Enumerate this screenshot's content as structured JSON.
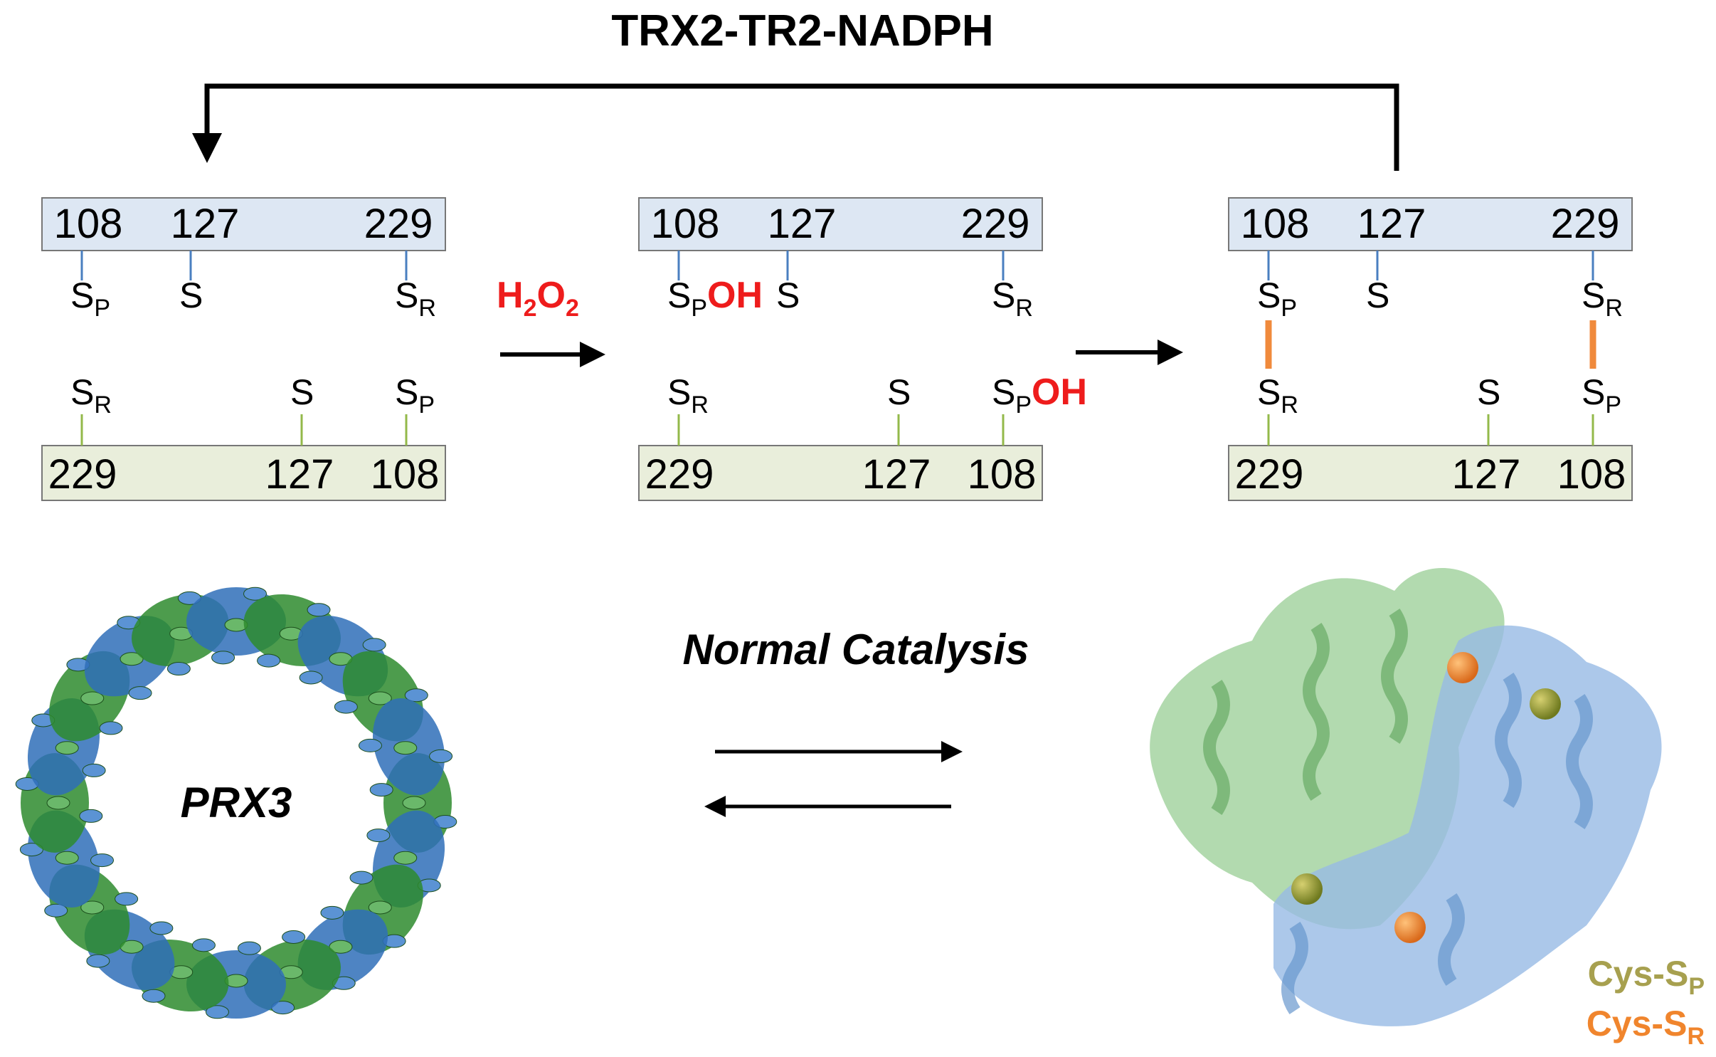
{
  "header": {
    "title": "TRX2-TR2-NADPH"
  },
  "reagent": {
    "parts": [
      "H",
      "2",
      "O",
      "2"
    ]
  },
  "panels": [
    {
      "top": {
        "residues": [
          108,
          127,
          229
        ],
        "sites": [
          {
            "atom": "S",
            "sub": "P"
          },
          {
            "atom": "S"
          },
          {
            "atom": "S",
            "sub": "R"
          }
        ]
      },
      "bottom": {
        "residues": [
          229,
          127,
          108
        ],
        "sites": [
          {
            "atom": "S",
            "sub": "R"
          },
          {
            "atom": "S"
          },
          {
            "atom": "S",
            "sub": "P"
          }
        ]
      }
    },
    {
      "top": {
        "residues": [
          108,
          127,
          229
        ],
        "sites": [
          {
            "atom": "S",
            "sub": "P",
            "suffix": "OH"
          },
          {
            "atom": "S"
          },
          {
            "atom": "S",
            "sub": "R"
          }
        ]
      },
      "bottom": {
        "residues": [
          229,
          127,
          108
        ],
        "sites": [
          {
            "atom": "S",
            "sub": "R"
          },
          {
            "atom": "S"
          },
          {
            "atom": "S",
            "sub": "P",
            "suffix": "OH"
          }
        ]
      }
    },
    {
      "top": {
        "residues": [
          108,
          127,
          229
        ],
        "sites": [
          {
            "atom": "S",
            "sub": "P"
          },
          {
            "atom": "S"
          },
          {
            "atom": "S",
            "sub": "R"
          }
        ]
      },
      "bottom": {
        "residues": [
          229,
          127,
          108
        ],
        "sites": [
          {
            "atom": "S",
            "sub": "R"
          },
          {
            "atom": "S"
          },
          {
            "atom": "S",
            "sub": "P"
          }
        ]
      }
    }
  ],
  "catalysis_label": "Normal Catalysis",
  "structure_label": "PRX3",
  "legend": [
    {
      "atom": "Cys-S",
      "sub": "P"
    },
    {
      "atom": "Cys-S",
      "sub": "R"
    }
  ]
}
